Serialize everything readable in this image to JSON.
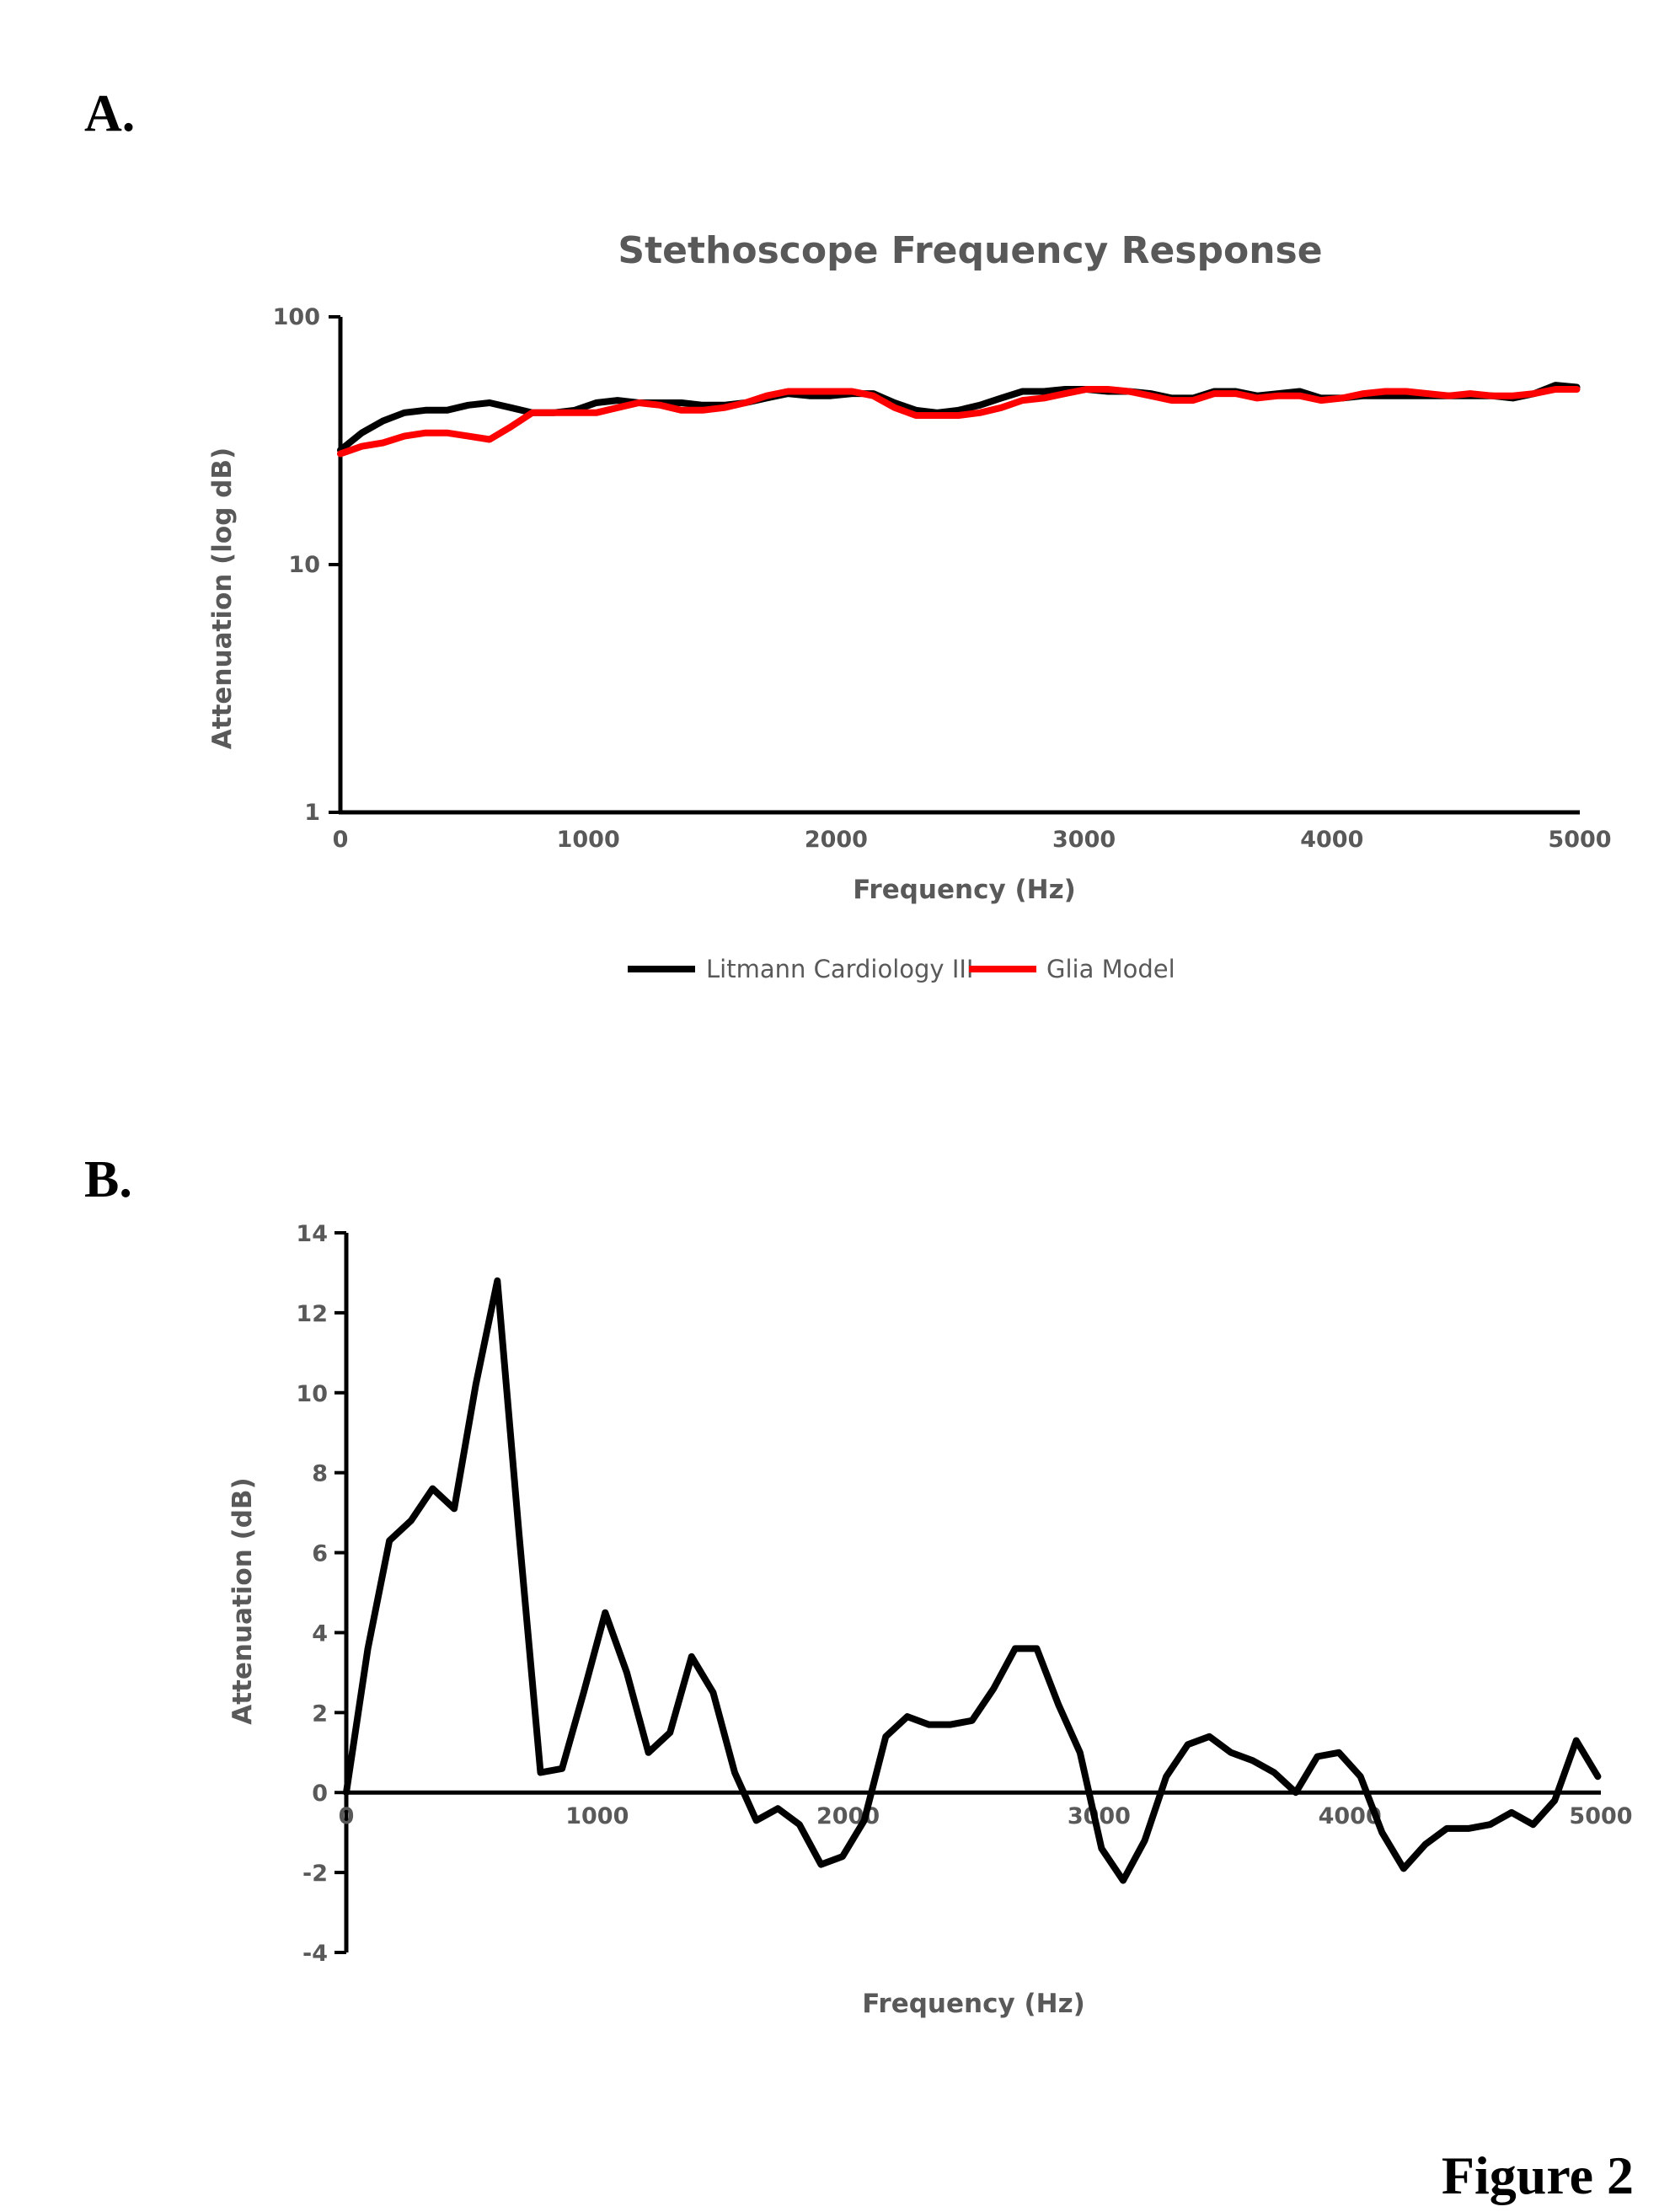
{
  "panels": {
    "a_label": "A.",
    "b_label": "B."
  },
  "figure_caption": "Figure 2",
  "chart_data": [
    {
      "type": "line",
      "title": "Stethoscope Frequency Response",
      "xlabel": "Frequency (Hz)",
      "ylabel": "Attenuation (log dB)",
      "xlim": [
        0,
        5000
      ],
      "ylim": [
        1,
        100
      ],
      "yscale": "log",
      "x_ticks": [
        "0",
        "1000",
        "2000",
        "3000",
        "4000",
        "5000"
      ],
      "y_ticks": [
        "100",
        "10",
        "1"
      ],
      "grid": false,
      "legend_position": "bottom",
      "x": [
        0,
        86,
        172,
        258,
        344,
        430,
        516,
        602,
        688,
        774,
        860,
        946,
        1032,
        1118,
        1204,
        1290,
        1376,
        1462,
        1548,
        1634,
        1720,
        1806,
        1892,
        1978,
        2064,
        2150,
        2236,
        2322,
        2408,
        2494,
        2580,
        2666,
        2752,
        2838,
        2924,
        3010,
        3096,
        3182,
        3268,
        3354,
        3440,
        3526,
        3612,
        3698,
        3784,
        3870,
        3956,
        4042,
        4128,
        4214,
        4300,
        4386,
        4472,
        4558,
        4644,
        4730,
        4816,
        4902,
        4988
      ],
      "series": [
        {
          "name": "Litmann Cardiology III",
          "color": "#000000",
          "values": [
            29,
            34,
            38,
            41,
            42,
            42,
            44,
            45,
            43,
            41,
            41,
            42,
            45,
            46,
            45,
            45,
            45,
            44,
            44,
            45,
            47,
            49,
            48,
            48,
            49,
            49,
            45,
            42,
            41,
            42,
            44,
            47,
            50,
            50,
            51,
            51,
            50,
            50,
            49,
            47,
            47,
            50,
            50,
            48,
            49,
            50,
            47,
            47,
            48,
            48,
            48,
            48,
            48,
            48,
            48,
            47,
            49,
            53,
            52
          ]
        },
        {
          "name": "Glia Model",
          "color": "#ff0000",
          "values": [
            28,
            30,
            31,
            33,
            34,
            34,
            33,
            32,
            36,
            41,
            41,
            41,
            41,
            43,
            45,
            44,
            42,
            42,
            43,
            45,
            48,
            50,
            50,
            50,
            50,
            48,
            43,
            40,
            40,
            40,
            41,
            43,
            46,
            47,
            49,
            51,
            51,
            50,
            48,
            46,
            46,
            49,
            49,
            47,
            48,
            48,
            46,
            47,
            49,
            50,
            50,
            49,
            48,
            49,
            48,
            48,
            49,
            51,
            51
          ]
        }
      ]
    },
    {
      "type": "line",
      "title": "",
      "xlabel": "Frequency (Hz)",
      "ylabel": "Attenuation (dB)",
      "xlim": [
        0,
        5000
      ],
      "ylim": [
        -4,
        14
      ],
      "x_ticks": [
        "0",
        "1000",
        "2000",
        "3000",
        "4000",
        "5000"
      ],
      "y_ticks": [
        "14",
        "12",
        "10",
        "8",
        "6",
        "4",
        "2",
        "0",
        "-2",
        "-4"
      ],
      "grid": false,
      "x": [
        0,
        86,
        172,
        258,
        344,
        430,
        516,
        602,
        688,
        774,
        860,
        946,
        1032,
        1118,
        1204,
        1290,
        1376,
        1462,
        1548,
        1634,
        1720,
        1806,
        1892,
        1978,
        2064,
        2150,
        2236,
        2322,
        2408,
        2494,
        2580,
        2666,
        2752,
        2838,
        2924,
        3010,
        3096,
        3182,
        3268,
        3354,
        3440,
        3526,
        3612,
        3698,
        3784,
        3870,
        3956,
        4042,
        4128,
        4214,
        4300,
        4386,
        4472,
        4558,
        4644,
        4730,
        4816,
        4902,
        4988
      ],
      "series": [
        {
          "values": [
            0,
            3.6,
            6.3,
            6.8,
            7.6,
            7.1,
            10.2,
            12.8,
            6.5,
            0.5,
            0.6,
            2.5,
            4.5,
            3.0,
            1.0,
            1.5,
            3.4,
            2.5,
            0.5,
            -0.7,
            -0.4,
            -0.8,
            -1.8,
            -1.6,
            -0.7,
            1.4,
            1.9,
            1.7,
            1.7,
            1.8,
            2.6,
            3.6,
            3.6,
            2.2,
            1.0,
            -1.4,
            -2.2,
            -1.2,
            0.4,
            1.2,
            1.4,
            1.0,
            0.8,
            0.5,
            0.0,
            0.9,
            1.0,
            0.4,
            -1.0,
            -1.9,
            -1.3,
            -0.9,
            -0.9,
            -0.8,
            -0.5,
            -0.8,
            -0.2,
            1.3,
            0.4
          ]
        }
      ]
    }
  ]
}
